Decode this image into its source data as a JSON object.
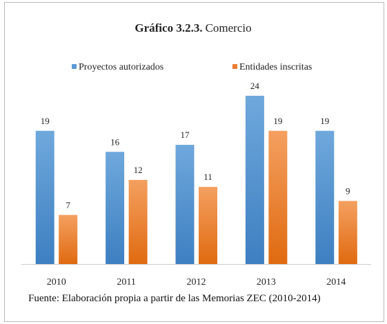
{
  "chart_data": {
    "type": "bar",
    "title_number": "Gráfico 3.2.3.",
    "title": "Comercio",
    "categories": [
      "2010",
      "2011",
      "2012",
      "2013",
      "2014"
    ],
    "series": [
      {
        "name": "Proyectos autorizados",
        "color": "#5b9bd5",
        "values": [
          19,
          16,
          17,
          24,
          19
        ]
      },
      {
        "name": "Entidades inscritas",
        "color": "#ed7d31",
        "values": [
          7,
          12,
          11,
          19,
          9
        ]
      }
    ],
    "legend": "top",
    "source": "Fuente: Elaboración propia a partir de las Memorias ZEC (2010-2014)"
  }
}
